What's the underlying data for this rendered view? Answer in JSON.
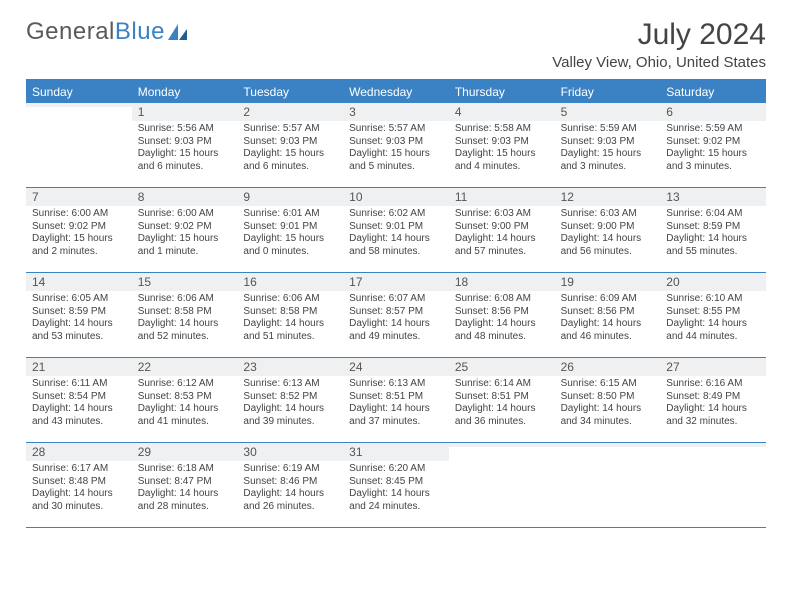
{
  "brand": {
    "part1": "General",
    "part2": "Blue"
  },
  "title": "July 2024",
  "location": "Valley View, Ohio, United States",
  "colors": {
    "accent": "#3b82c4",
    "header_bg": "#3b82c4",
    "header_text": "#ffffff",
    "daynum_bg": "#eef0f2",
    "text": "#444444"
  },
  "weekdays": [
    "Sunday",
    "Monday",
    "Tuesday",
    "Wednesday",
    "Thursday",
    "Friday",
    "Saturday"
  ],
  "weeks": [
    [
      {
        "day": "",
        "sunrise": "",
        "sunset": "",
        "daylight1": "",
        "daylight2": ""
      },
      {
        "day": "1",
        "sunrise": "Sunrise: 5:56 AM",
        "sunset": "Sunset: 9:03 PM",
        "daylight1": "Daylight: 15 hours",
        "daylight2": "and 6 minutes."
      },
      {
        "day": "2",
        "sunrise": "Sunrise: 5:57 AM",
        "sunset": "Sunset: 9:03 PM",
        "daylight1": "Daylight: 15 hours",
        "daylight2": "and 6 minutes."
      },
      {
        "day": "3",
        "sunrise": "Sunrise: 5:57 AM",
        "sunset": "Sunset: 9:03 PM",
        "daylight1": "Daylight: 15 hours",
        "daylight2": "and 5 minutes."
      },
      {
        "day": "4",
        "sunrise": "Sunrise: 5:58 AM",
        "sunset": "Sunset: 9:03 PM",
        "daylight1": "Daylight: 15 hours",
        "daylight2": "and 4 minutes."
      },
      {
        "day": "5",
        "sunrise": "Sunrise: 5:59 AM",
        "sunset": "Sunset: 9:03 PM",
        "daylight1": "Daylight: 15 hours",
        "daylight2": "and 3 minutes."
      },
      {
        "day": "6",
        "sunrise": "Sunrise: 5:59 AM",
        "sunset": "Sunset: 9:02 PM",
        "daylight1": "Daylight: 15 hours",
        "daylight2": "and 3 minutes."
      }
    ],
    [
      {
        "day": "7",
        "sunrise": "Sunrise: 6:00 AM",
        "sunset": "Sunset: 9:02 PM",
        "daylight1": "Daylight: 15 hours",
        "daylight2": "and 2 minutes."
      },
      {
        "day": "8",
        "sunrise": "Sunrise: 6:00 AM",
        "sunset": "Sunset: 9:02 PM",
        "daylight1": "Daylight: 15 hours",
        "daylight2": "and 1 minute."
      },
      {
        "day": "9",
        "sunrise": "Sunrise: 6:01 AM",
        "sunset": "Sunset: 9:01 PM",
        "daylight1": "Daylight: 15 hours",
        "daylight2": "and 0 minutes."
      },
      {
        "day": "10",
        "sunrise": "Sunrise: 6:02 AM",
        "sunset": "Sunset: 9:01 PM",
        "daylight1": "Daylight: 14 hours",
        "daylight2": "and 58 minutes."
      },
      {
        "day": "11",
        "sunrise": "Sunrise: 6:03 AM",
        "sunset": "Sunset: 9:00 PM",
        "daylight1": "Daylight: 14 hours",
        "daylight2": "and 57 minutes."
      },
      {
        "day": "12",
        "sunrise": "Sunrise: 6:03 AM",
        "sunset": "Sunset: 9:00 PM",
        "daylight1": "Daylight: 14 hours",
        "daylight2": "and 56 minutes."
      },
      {
        "day": "13",
        "sunrise": "Sunrise: 6:04 AM",
        "sunset": "Sunset: 8:59 PM",
        "daylight1": "Daylight: 14 hours",
        "daylight2": "and 55 minutes."
      }
    ],
    [
      {
        "day": "14",
        "sunrise": "Sunrise: 6:05 AM",
        "sunset": "Sunset: 8:59 PM",
        "daylight1": "Daylight: 14 hours",
        "daylight2": "and 53 minutes."
      },
      {
        "day": "15",
        "sunrise": "Sunrise: 6:06 AM",
        "sunset": "Sunset: 8:58 PM",
        "daylight1": "Daylight: 14 hours",
        "daylight2": "and 52 minutes."
      },
      {
        "day": "16",
        "sunrise": "Sunrise: 6:06 AM",
        "sunset": "Sunset: 8:58 PM",
        "daylight1": "Daylight: 14 hours",
        "daylight2": "and 51 minutes."
      },
      {
        "day": "17",
        "sunrise": "Sunrise: 6:07 AM",
        "sunset": "Sunset: 8:57 PM",
        "daylight1": "Daylight: 14 hours",
        "daylight2": "and 49 minutes."
      },
      {
        "day": "18",
        "sunrise": "Sunrise: 6:08 AM",
        "sunset": "Sunset: 8:56 PM",
        "daylight1": "Daylight: 14 hours",
        "daylight2": "and 48 minutes."
      },
      {
        "day": "19",
        "sunrise": "Sunrise: 6:09 AM",
        "sunset": "Sunset: 8:56 PM",
        "daylight1": "Daylight: 14 hours",
        "daylight2": "and 46 minutes."
      },
      {
        "day": "20",
        "sunrise": "Sunrise: 6:10 AM",
        "sunset": "Sunset: 8:55 PM",
        "daylight1": "Daylight: 14 hours",
        "daylight2": "and 44 minutes."
      }
    ],
    [
      {
        "day": "21",
        "sunrise": "Sunrise: 6:11 AM",
        "sunset": "Sunset: 8:54 PM",
        "daylight1": "Daylight: 14 hours",
        "daylight2": "and 43 minutes."
      },
      {
        "day": "22",
        "sunrise": "Sunrise: 6:12 AM",
        "sunset": "Sunset: 8:53 PM",
        "daylight1": "Daylight: 14 hours",
        "daylight2": "and 41 minutes."
      },
      {
        "day": "23",
        "sunrise": "Sunrise: 6:13 AM",
        "sunset": "Sunset: 8:52 PM",
        "daylight1": "Daylight: 14 hours",
        "daylight2": "and 39 minutes."
      },
      {
        "day": "24",
        "sunrise": "Sunrise: 6:13 AM",
        "sunset": "Sunset: 8:51 PM",
        "daylight1": "Daylight: 14 hours",
        "daylight2": "and 37 minutes."
      },
      {
        "day": "25",
        "sunrise": "Sunrise: 6:14 AM",
        "sunset": "Sunset: 8:51 PM",
        "daylight1": "Daylight: 14 hours",
        "daylight2": "and 36 minutes."
      },
      {
        "day": "26",
        "sunrise": "Sunrise: 6:15 AM",
        "sunset": "Sunset: 8:50 PM",
        "daylight1": "Daylight: 14 hours",
        "daylight2": "and 34 minutes."
      },
      {
        "day": "27",
        "sunrise": "Sunrise: 6:16 AM",
        "sunset": "Sunset: 8:49 PM",
        "daylight1": "Daylight: 14 hours",
        "daylight2": "and 32 minutes."
      }
    ],
    [
      {
        "day": "28",
        "sunrise": "Sunrise: 6:17 AM",
        "sunset": "Sunset: 8:48 PM",
        "daylight1": "Daylight: 14 hours",
        "daylight2": "and 30 minutes."
      },
      {
        "day": "29",
        "sunrise": "Sunrise: 6:18 AM",
        "sunset": "Sunset: 8:47 PM",
        "daylight1": "Daylight: 14 hours",
        "daylight2": "and 28 minutes."
      },
      {
        "day": "30",
        "sunrise": "Sunrise: 6:19 AM",
        "sunset": "Sunset: 8:46 PM",
        "daylight1": "Daylight: 14 hours",
        "daylight2": "and 26 minutes."
      },
      {
        "day": "31",
        "sunrise": "Sunrise: 6:20 AM",
        "sunset": "Sunset: 8:45 PM",
        "daylight1": "Daylight: 14 hours",
        "daylight2": "and 24 minutes."
      },
      {
        "day": "",
        "sunrise": "",
        "sunset": "",
        "daylight1": "",
        "daylight2": ""
      },
      {
        "day": "",
        "sunrise": "",
        "sunset": "",
        "daylight1": "",
        "daylight2": ""
      },
      {
        "day": "",
        "sunrise": "",
        "sunset": "",
        "daylight1": "",
        "daylight2": ""
      }
    ]
  ]
}
